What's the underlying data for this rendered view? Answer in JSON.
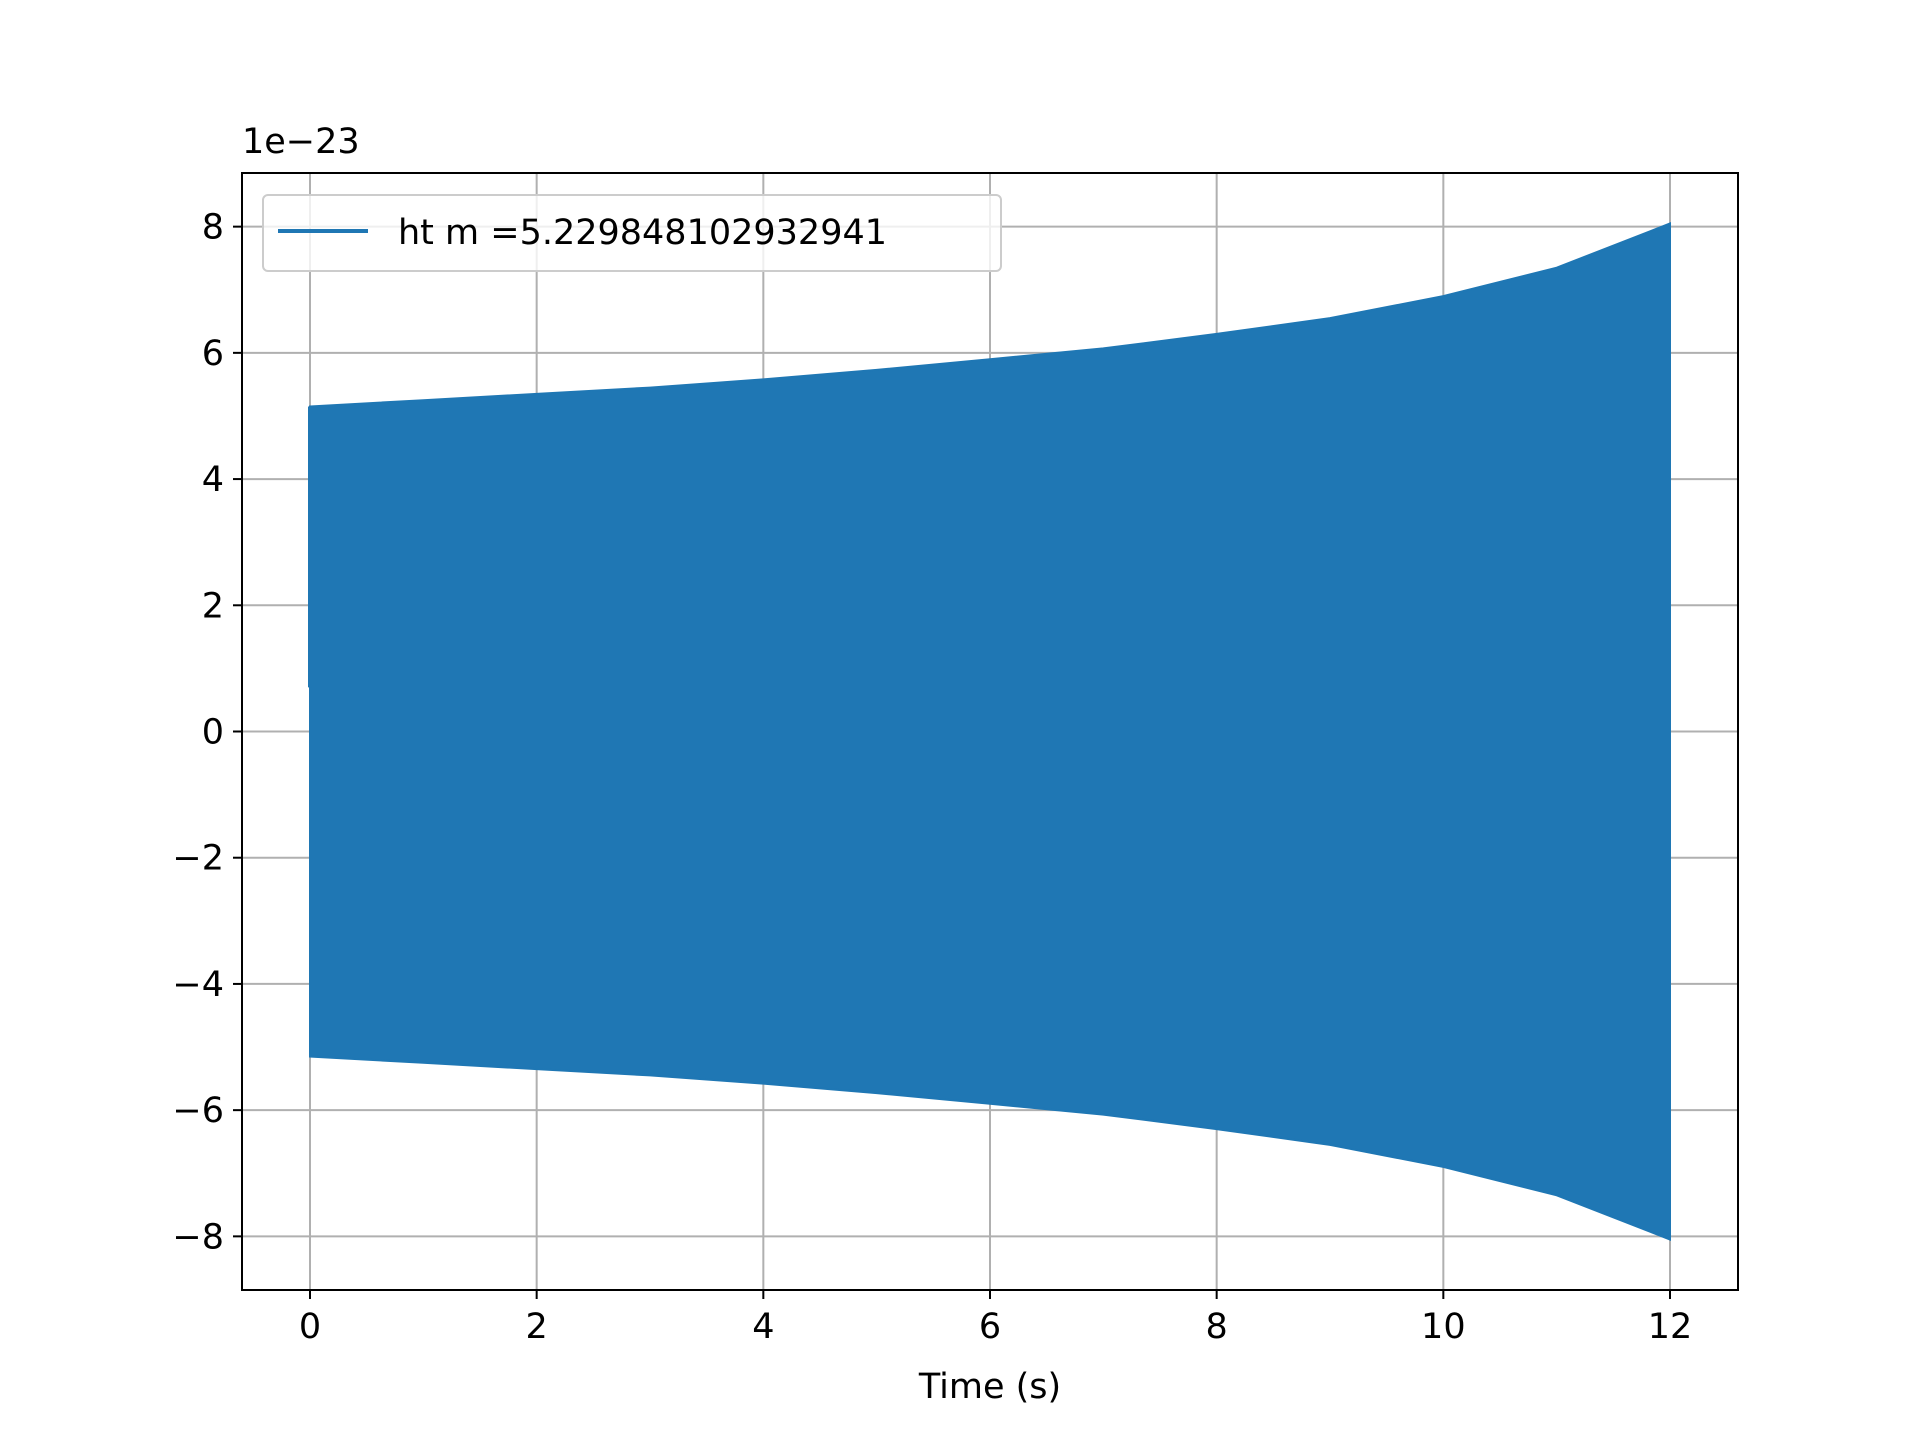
{
  "chart_data": {
    "type": "line",
    "title": "",
    "xlabel": "Time (s)",
    "ylabel": "",
    "y_offset_text": "1e−23",
    "xlim": [
      -0.6,
      12.6
    ],
    "ylim": [
      -8.85,
      8.85
    ],
    "xticks": [
      0,
      2,
      4,
      6,
      8,
      10,
      12
    ],
    "xtick_labels": [
      "0",
      "2",
      "4",
      "6",
      "8",
      "10",
      "12"
    ],
    "yticks": [
      -8,
      -6,
      -4,
      -2,
      0,
      2,
      4,
      6,
      8
    ],
    "ytick_labels": [
      "−8",
      "−6",
      "−4",
      "−2",
      "0",
      "2",
      "4",
      "6",
      "8"
    ],
    "grid": true,
    "legend_position": "upper-left",
    "series": [
      {
        "name": "ht m =5.229848102932941",
        "color": "#1f77b4",
        "description_kind": "dense oscillation envelope",
        "t": [
          0,
          1,
          2,
          3,
          4,
          5,
          6,
          7,
          8,
          9,
          10,
          11,
          12
        ],
        "upper": [
          5.15,
          5.25,
          5.35,
          5.45,
          5.58,
          5.73,
          5.9,
          6.07,
          6.3,
          6.55,
          6.9,
          7.35,
          8.05
        ],
        "lower": [
          -5.15,
          -5.25,
          -5.35,
          -5.45,
          -5.58,
          -5.73,
          -5.9,
          -6.07,
          -6.3,
          -6.55,
          -6.9,
          -7.35,
          -8.05
        ]
      }
    ]
  }
}
